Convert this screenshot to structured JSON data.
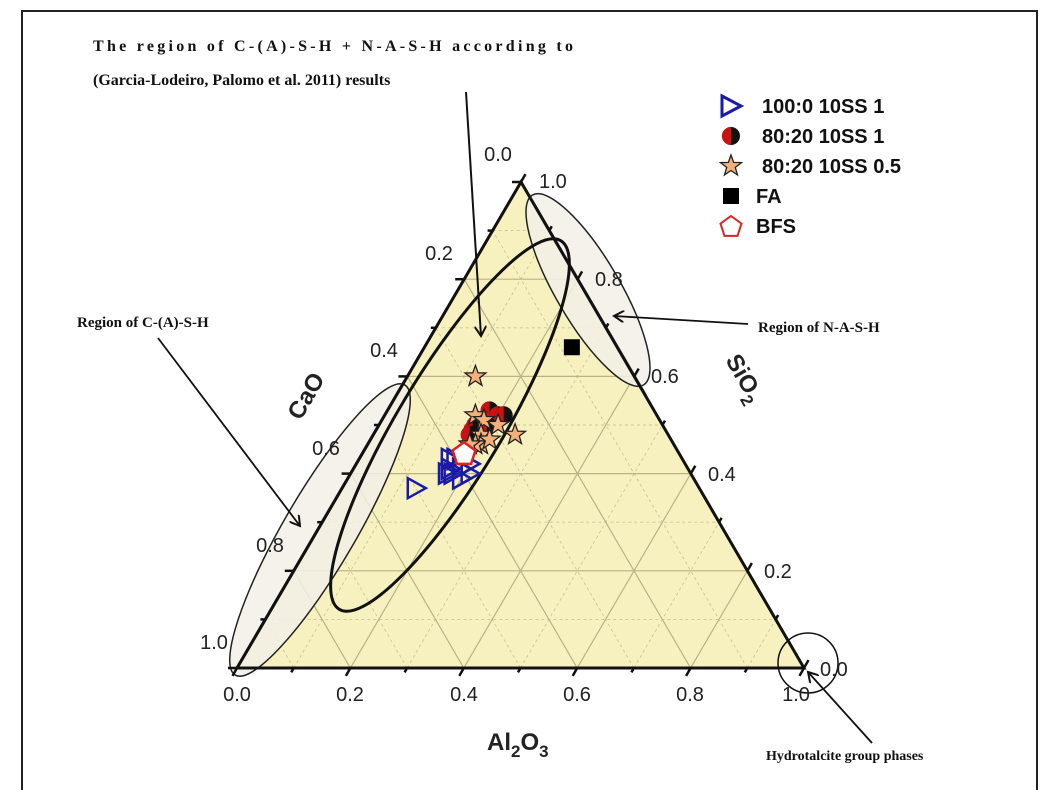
{
  "chart_data": {
    "type": "scatter",
    "subtype": "ternary",
    "title": "",
    "axes": {
      "bottom": {
        "label": "Al2O3",
        "ticks": [
          "0.0",
          "0.2",
          "0.4",
          "0.6",
          "0.8",
          "1.0"
        ]
      },
      "left": {
        "label": "CaO",
        "ticks": [
          "0.0",
          "0.2",
          "0.4",
          "0.6",
          "0.8",
          "1.0"
        ]
      },
      "right": {
        "label": "SiO2",
        "ticks": [
          "1.0",
          "0.8",
          "0.6",
          "0.4",
          "0.2",
          "0.0"
        ]
      }
    },
    "range": [
      0,
      1
    ],
    "grid": true,
    "legend_position": "top-right",
    "series": [
      {
        "name": "100:0 10SS 1",
        "marker": "triangle-right-open",
        "color": "#1a1aa8",
        "points": [
          {
            "CaO": 0.42,
            "Al2O3": 0.17,
            "SiO2": 0.41
          },
          {
            "CaO": 0.43,
            "Al2O3": 0.17,
            "SiO2": 0.4
          },
          {
            "CaO": 0.41,
            "Al2O3": 0.16,
            "SiO2": 0.43
          },
          {
            "CaO": 0.4,
            "Al2O3": 0.17,
            "SiO2": 0.43
          },
          {
            "CaO": 0.42,
            "Al2O3": 0.18,
            "SiO2": 0.4
          },
          {
            "CaO": 0.4,
            "Al2O3": 0.19,
            "SiO2": 0.41
          },
          {
            "CaO": 0.38,
            "Al2O3": 0.2,
            "SiO2": 0.42
          },
          {
            "CaO": 0.39,
            "Al2O3": 0.21,
            "SiO2": 0.4
          },
          {
            "CaO": 0.41,
            "Al2O3": 0.2,
            "SiO2": 0.39
          },
          {
            "CaO": 0.5,
            "Al2O3": 0.13,
            "SiO2": 0.37
          }
        ]
      },
      {
        "name": "80:20 10SS 1",
        "marker": "circle-half-filled",
        "color": "#cc1111",
        "points": [
          {
            "CaO": 0.29,
            "Al2O3": 0.18,
            "SiO2": 0.53
          },
          {
            "CaO": 0.28,
            "Al2O3": 0.2,
            "SiO2": 0.52
          },
          {
            "CaO": 0.27,
            "Al2O3": 0.21,
            "SiO2": 0.52
          },
          {
            "CaO": 0.33,
            "Al2O3": 0.17,
            "SiO2": 0.5
          },
          {
            "CaO": 0.34,
            "Al2O3": 0.17,
            "SiO2": 0.49
          },
          {
            "CaO": 0.35,
            "Al2O3": 0.17,
            "SiO2": 0.48
          },
          {
            "CaO": 0.36,
            "Al2O3": 0.18,
            "SiO2": 0.46
          },
          {
            "CaO": 0.31,
            "Al2O3": 0.19,
            "SiO2": 0.5
          }
        ]
      },
      {
        "name": "80:20 10SS 0.5",
        "marker": "star",
        "color": "#f4b07a",
        "points": [
          {
            "CaO": 0.28,
            "Al2O3": 0.12,
            "SiO2": 0.6
          },
          {
            "CaO": 0.32,
            "Al2O3": 0.16,
            "SiO2": 0.52
          },
          {
            "CaO": 0.31,
            "Al2O3": 0.18,
            "SiO2": 0.51
          },
          {
            "CaO": 0.29,
            "Al2O3": 0.21,
            "SiO2": 0.5
          },
          {
            "CaO": 0.33,
            "Al2O3": 0.19,
            "SiO2": 0.48
          },
          {
            "CaO": 0.34,
            "Al2O3": 0.2,
            "SiO2": 0.46
          },
          {
            "CaO": 0.35,
            "Al2O3": 0.19,
            "SiO2": 0.46
          },
          {
            "CaO": 0.27,
            "Al2O3": 0.25,
            "SiO2": 0.48
          },
          {
            "CaO": 0.36,
            "Al2O3": 0.18,
            "SiO2": 0.46
          },
          {
            "CaO": 0.32,
            "Al2O3": 0.21,
            "SiO2": 0.47
          }
        ]
      },
      {
        "name": "FA",
        "marker": "square-filled",
        "color": "#000000",
        "points": [
          {
            "CaO": 0.08,
            "Al2O3": 0.26,
            "SiO2": 0.66
          }
        ]
      },
      {
        "name": "BFS",
        "marker": "pentagon-open",
        "color": "#dd2222",
        "points": [
          {
            "CaO": 0.38,
            "Al2O3": 0.18,
            "SiO2": 0.44
          }
        ]
      }
    ],
    "annotations": [
      {
        "text": "The region of C-(A)-S-H + N-A-S-H according to (Garcia-Lodeiro, Palomo et al. 2011) results",
        "shape": "ellipse"
      },
      {
        "text": "Region of C-(A)-S-H",
        "shape": "ellipse along CaO axis 0.4–1.0"
      },
      {
        "text": "Region of N-A-S-H",
        "shape": "ellipse along SiO2 axis 0.6–1.0"
      },
      {
        "text": "Hydrotalcite group phases",
        "shape": "circle at Al2O3 = 1.0 vertex"
      }
    ]
  },
  "annotations": {
    "top_line1": "The region of C-(A)-S-H + N-A-S-H according to",
    "top_line2": "(Garcia-Lodeiro, Palomo et al. 2011) results",
    "left": "Region of C-(A)-S-H",
    "right": "Region of N-A-S-H",
    "bottom": "Hydrotalcite group phases"
  },
  "axes": {
    "bottom_title": "Al",
    "bottom_sub1": "2",
    "bottom_mid": "O",
    "bottom_sub2": "3",
    "left_title": "CaO",
    "right_title": "SiO",
    "right_sub": "2",
    "bottom_ticks": [
      "0.0",
      "0.2",
      "0.4",
      "0.6",
      "0.8",
      "1.0"
    ],
    "left_ticks": [
      "0.0",
      "0.2",
      "0.4",
      "0.6",
      "0.8",
      "1.0"
    ],
    "right_ticks": [
      "1.0",
      "0.8",
      "0.6",
      "0.4",
      "0.2",
      "0.0"
    ]
  },
  "legend": {
    "items": [
      {
        "label": "100:0 10SS 1"
      },
      {
        "label": "80:20 10SS 1"
      },
      {
        "label": "80:20 10SS 0.5"
      },
      {
        "label": "FA"
      },
      {
        "label": "BFS"
      }
    ]
  },
  "colors": {
    "fill": "#f7f1c0",
    "grid": "#b9b283",
    "blue": "#1a1aa8",
    "red": "#cc1111",
    "star": "#f4b07a",
    "bfs": "#dd2222",
    "region_fill": "#f2f0e8"
  }
}
